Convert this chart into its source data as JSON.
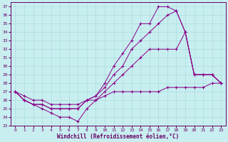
{
  "xlabel": "Windchill (Refroidissement éolien,°C)",
  "xlim": [
    -0.5,
    23.5
  ],
  "ylim": [
    23,
    37.5
  ],
  "yticks": [
    23,
    24,
    25,
    26,
    27,
    28,
    29,
    30,
    31,
    32,
    33,
    34,
    35,
    36,
    37
  ],
  "xticks": [
    0,
    1,
    2,
    3,
    4,
    5,
    6,
    7,
    8,
    9,
    10,
    11,
    12,
    13,
    14,
    15,
    16,
    17,
    18,
    19,
    20,
    21,
    22,
    23
  ],
  "line_color": "#880088",
  "bg_color": "#c8eef0",
  "grid_color": "#aadddd",
  "lines": [
    {
      "x": [
        0,
        1,
        2,
        3,
        4,
        5,
        6,
        7,
        8,
        9,
        10,
        11,
        12,
        13,
        14,
        15,
        16,
        17,
        18,
        19,
        20,
        21,
        22,
        23
      ],
      "y": [
        27,
        26.5,
        26,
        26,
        25.5,
        25.5,
        25.5,
        25.5,
        26,
        26,
        26.5,
        27,
        27,
        27,
        27,
        27,
        27,
        27.5,
        27.5,
        27.5,
        27.5,
        27.5,
        28,
        28
      ]
    },
    {
      "x": [
        0,
        1,
        2,
        3,
        4,
        5,
        6,
        7,
        8,
        9,
        10,
        11,
        12,
        13,
        14,
        15,
        16,
        17,
        18,
        19,
        20,
        21,
        22,
        23
      ],
      "y": [
        27,
        26,
        25.5,
        25,
        24.5,
        24,
        24,
        23.5,
        25,
        26,
        27,
        28,
        29,
        30,
        31,
        32,
        32,
        32,
        32,
        34,
        29,
        29,
        29,
        28
      ]
    },
    {
      "x": [
        0,
        1,
        2,
        3,
        4,
        5,
        6,
        7,
        8,
        9,
        10,
        11,
        12,
        13,
        14,
        15,
        16,
        17,
        18,
        19,
        20,
        21,
        22,
        23
      ],
      "y": [
        27,
        26,
        25.5,
        25.5,
        25,
        25,
        25,
        25,
        26,
        26.5,
        27.5,
        29,
        30,
        32,
        33,
        34,
        35,
        36,
        36.5,
        34,
        29,
        29,
        29,
        28
      ]
    },
    {
      "x": [
        0,
        1,
        2,
        3,
        4,
        5,
        6,
        7,
        8,
        9,
        10,
        11,
        12,
        13,
        14,
        15,
        16,
        17,
        18,
        19,
        20,
        21,
        22,
        23
      ],
      "y": [
        27,
        26,
        25.5,
        25.5,
        25,
        25,
        25,
        25,
        26,
        26.5,
        28,
        30,
        31.5,
        33,
        35,
        35,
        37,
        37,
        36.5,
        34,
        29,
        29,
        29,
        28
      ]
    }
  ]
}
